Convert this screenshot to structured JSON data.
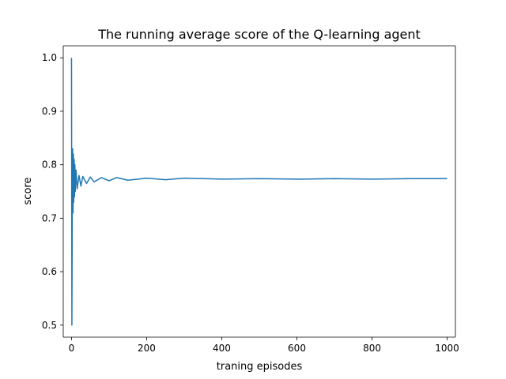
{
  "chart_data": {
    "type": "line",
    "title": "The running average score of the Q-learning agent",
    "xlabel": "traning episodes",
    "ylabel": "score",
    "xlim": [
      -22,
      1022
    ],
    "ylim": [
      0.4775,
      1.0225
    ],
    "xticks": [
      0,
      200,
      400,
      600,
      800,
      1000
    ],
    "yticks": [
      0.5,
      0.6,
      0.7,
      0.8,
      0.9,
      1.0
    ],
    "xtick_labels": [
      "0",
      "200",
      "400",
      "600",
      "800",
      "1000"
    ],
    "ytick_labels": [
      "0.5",
      "0.6",
      "0.7",
      "0.8",
      "0.9",
      "1.0"
    ],
    "grid": false,
    "legend": "none",
    "series": [
      {
        "color": "#1f77b4",
        "x": [
          0,
          1,
          2,
          3,
          4,
          5,
          6,
          7,
          8,
          9,
          10,
          12,
          15,
          20,
          25,
          30,
          40,
          50,
          60,
          80,
          100,
          120,
          150,
          200,
          250,
          300,
          400,
          500,
          600,
          700,
          800,
          900,
          1000
        ],
        "y": [
          1.0,
          0.5,
          0.71,
          0.83,
          0.71,
          0.82,
          0.73,
          0.81,
          0.74,
          0.8,
          0.75,
          0.79,
          0.755,
          0.78,
          0.76,
          0.778,
          0.765,
          0.777,
          0.768,
          0.776,
          0.77,
          0.776,
          0.771,
          0.775,
          0.772,
          0.775,
          0.773,
          0.774,
          0.773,
          0.774,
          0.773,
          0.774,
          0.774
        ]
      }
    ]
  }
}
